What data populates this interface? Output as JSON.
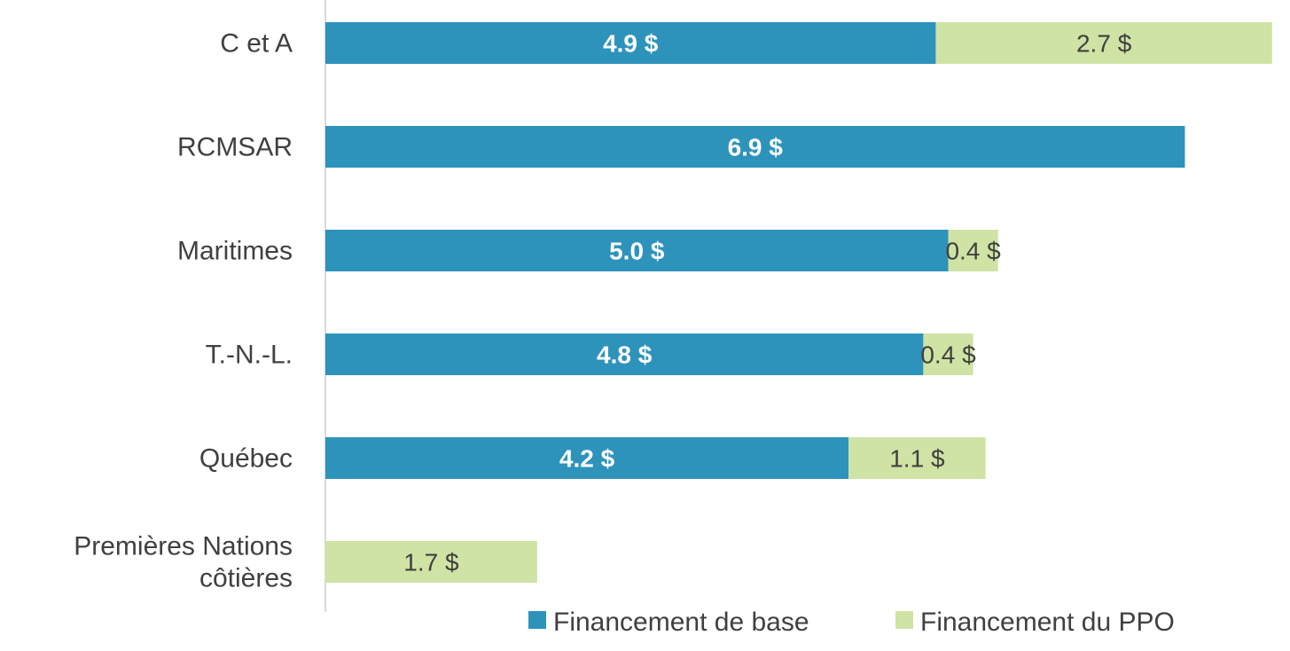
{
  "chart_data": {
    "type": "bar",
    "orientation": "horizontal",
    "stacked": true,
    "categories": [
      [
        "C et A"
      ],
      [
        "RCMSAR"
      ],
      [
        "Maritimes"
      ],
      [
        "T.-N.-L."
      ],
      [
        "Québec"
      ],
      [
        "Premières Nations",
        "côtières"
      ]
    ],
    "series": [
      {
        "name": "Financement de base",
        "color": "#2E93BB",
        "values": [
          4.9,
          6.9,
          5.0,
          4.8,
          4.2,
          null
        ],
        "labels": [
          "4.9 $",
          "6.9 $",
          "5.0 $",
          "4.8 $",
          "4.2 $",
          ""
        ]
      },
      {
        "name": "Financement du PPO",
        "color": "#CFE3A4",
        "values": [
          2.7,
          null,
          0.4,
          0.4,
          1.1,
          1.7
        ],
        "labels": [
          "2.7 $",
          "",
          "0.4 $",
          "0.4 $",
          "1.1 $",
          "1.7 $"
        ]
      }
    ],
    "xlim": [
      0,
      7.6
    ],
    "grid": false,
    "legend_position": "bottom-right",
    "title": "",
    "xlabel": "",
    "ylabel": ""
  }
}
